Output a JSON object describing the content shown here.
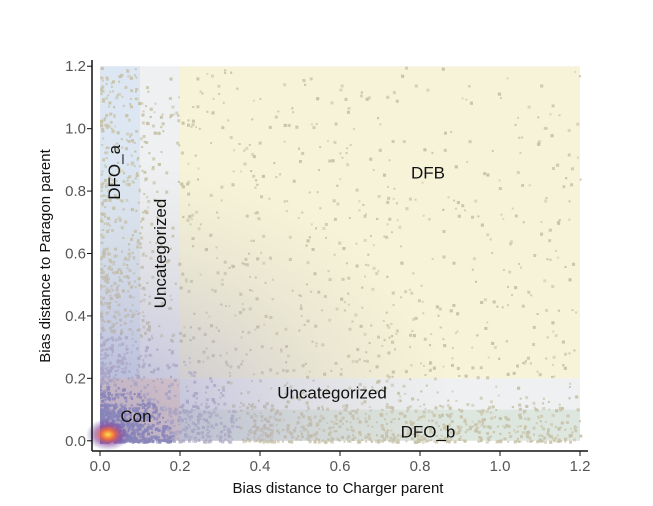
{
  "chart_data": {
    "type": "scatter",
    "title": "",
    "xlabel": "Bias distance to Charger parent",
    "ylabel": "Bias distance to Paragon parent",
    "xlim": [
      -0.02,
      1.22
    ],
    "ylim": [
      -0.02,
      1.22
    ],
    "x_ticks": [
      "0.0",
      "0.2",
      "0.4",
      "0.6",
      "0.8",
      "1.0",
      "1.2"
    ],
    "y_ticks": [
      "0.0",
      "0.2",
      "0.4",
      "0.6",
      "0.8",
      "1.0",
      "1.2"
    ],
    "grid": false,
    "legend": "none",
    "regions": [
      {
        "name": "DFB",
        "x": [
          0.2,
          1.2
        ],
        "y": [
          0.2,
          1.2
        ],
        "color": "#f6f3d8"
      },
      {
        "name": "DFO_a",
        "x": [
          0.0,
          0.1
        ],
        "y": [
          0.2,
          1.2
        ],
        "color": "#dce7f3"
      },
      {
        "name": "DFO_b",
        "x": [
          0.2,
          1.2
        ],
        "y": [
          0.0,
          0.1
        ],
        "color": "#dde6df"
      },
      {
        "name": "Con",
        "x": [
          0.0,
          0.2
        ],
        "y": [
          0.0,
          0.2
        ],
        "color": "#f6dccc"
      },
      {
        "name": "Uncategorized",
        "x": [
          0.1,
          0.2
        ],
        "y": [
          0.2,
          1.2
        ],
        "color": "#eef0f2"
      },
      {
        "name": "Uncategorized",
        "x": [
          0.2,
          1.2
        ],
        "y": [
          0.1,
          0.2
        ],
        "color": "#eef0f2"
      }
    ],
    "region_labels": [
      {
        "text": "DFB",
        "x": 0.82,
        "y": 0.86,
        "rotate": false
      },
      {
        "text": "DFO_a",
        "x": 0.035,
        "y": 0.86,
        "rotate": true
      },
      {
        "text": "Uncategorized",
        "x": 0.15,
        "y": 0.6,
        "rotate": true
      },
      {
        "text": "Uncategorized",
        "x": 0.58,
        "y": 0.155,
        "rotate": false
      },
      {
        "text": "DFO_b",
        "x": 0.82,
        "y": 0.03,
        "rotate": false
      },
      {
        "text": "Con",
        "x": 0.09,
        "y": 0.08,
        "rotate": false
      }
    ],
    "density": {
      "description_colors": [
        "#c8c3a8",
        "#b9b4c8",
        "#8b87b9",
        "#f26b3a",
        "#fde04a"
      ],
      "hotspot": {
        "x": 0.02,
        "y": 0.02
      }
    }
  }
}
